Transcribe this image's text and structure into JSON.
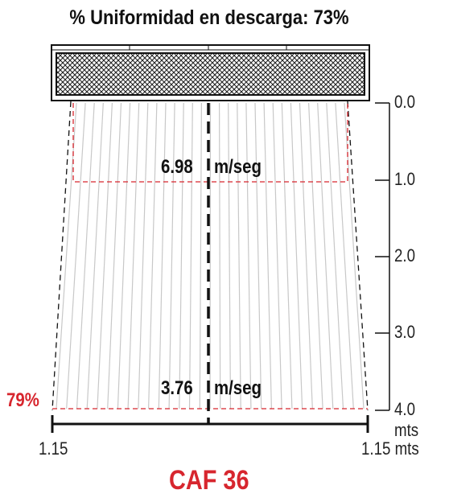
{
  "title": "% Uniformidad en descarga: 73%",
  "distance_axis": {
    "ticks": [
      "0.0",
      "1.0",
      "2.0",
      "3.0",
      "4.0 mts"
    ]
  },
  "width_axis": {
    "left_label": "1.15",
    "right_label": "1.15 mts"
  },
  "zones": {
    "near": {
      "value": "6.98",
      "unit": "m/seg"
    },
    "far": {
      "value": "3.76",
      "unit": "m/seg"
    }
  },
  "edge_uniformity": "79%",
  "model": "CAF 36",
  "colors": {
    "accent": "#d7262e",
    "stream": "#c8c8c8",
    "line": "#111111"
  }
}
